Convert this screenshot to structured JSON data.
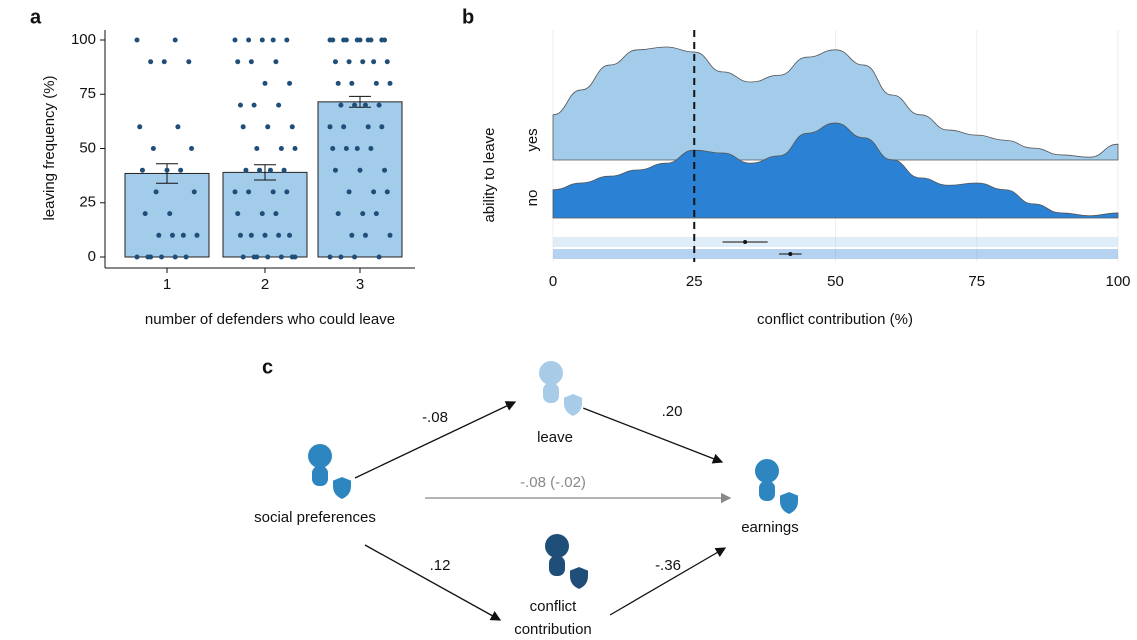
{
  "chart_data": [
    {
      "type": "bar",
      "panel_label": "a",
      "x_label": "number of defenders who could leave",
      "y_label": "leaving frequency (%)",
      "categories": [
        "1",
        "2",
        "3"
      ],
      "values": [
        38.5,
        39,
        71.5
      ],
      "errors": [
        4.5,
        3.5,
        2.5
      ],
      "color": "#a3cbea",
      "point_color": "#1f4e79",
      "points": [
        [
          100,
          100,
          90,
          90,
          90,
          60,
          60,
          50,
          50,
          40,
          40,
          40,
          30,
          30,
          20,
          20,
          10,
          10,
          10,
          10,
          0,
          0,
          0,
          0,
          0,
          0
        ],
        [
          100,
          100,
          100,
          100,
          100,
          90,
          90,
          90,
          80,
          80,
          70,
          70,
          70,
          60,
          60,
          60,
          50,
          50,
          50,
          40,
          40,
          40,
          40,
          30,
          30,
          30,
          30,
          20,
          20,
          20,
          10,
          10,
          10,
          10,
          10,
          0,
          0,
          0,
          0,
          0,
          0,
          0
        ],
        [
          100,
          100,
          100,
          100,
          100,
          100,
          100,
          100,
          100,
          100,
          90,
          90,
          90,
          90,
          90,
          80,
          80,
          80,
          80,
          70,
          70,
          70,
          70,
          60,
          60,
          60,
          60,
          50,
          50,
          50,
          50,
          40,
          40,
          40,
          30,
          30,
          30,
          20,
          20,
          20,
          10,
          10,
          10,
          0,
          0,
          0,
          0
        ]
      ],
      "ylim": [
        0,
        100
      ],
      "yticks": [
        0,
        25,
        50,
        75,
        100
      ]
    },
    {
      "type": "density",
      "panel_label": "b",
      "x_label": "conflict contribution (%)",
      "y_label": "ability to leave",
      "x": [
        0,
        5,
        10,
        15,
        20,
        25,
        30,
        35,
        40,
        45,
        50,
        55,
        60,
        65,
        70,
        75,
        80,
        85,
        90,
        95,
        100
      ],
      "series": [
        {
          "name": "yes",
          "color": "#a3cbea",
          "mean": 34,
          "mean_error": 4,
          "values": [
            0.008,
            0.0124,
            0.0168,
            0.0195,
            0.02,
            0.0191,
            0.0156,
            0.0138,
            0.015,
            0.0182,
            0.0195,
            0.0168,
            0.0115,
            0.008,
            0.0053,
            0.0044,
            0.0035,
            0.0021,
            0.0009,
            0.0005,
            0.0028
          ]
        },
        {
          "name": "no",
          "color": "#2b82d4",
          "mean": 42,
          "mean_error": 2,
          "values": [
            0.005,
            0.0062,
            0.0074,
            0.0085,
            0.0097,
            0.012,
            0.0115,
            0.0097,
            0.011,
            0.015,
            0.0168,
            0.0142,
            0.0103,
            0.0071,
            0.0058,
            0.0062,
            0.005,
            0.0025,
            0.0009,
            0.0004,
            0.0009
          ]
        }
      ],
      "reference_line": 25,
      "xlim": [
        0,
        100
      ],
      "xticks": [
        0,
        25,
        50,
        75,
        100
      ],
      "ylim": [
        0,
        0.02
      ],
      "grid": true
    }
  ],
  "diagram": {
    "panel_label": "c",
    "nodes": [
      {
        "label": "social preferences"
      },
      {
        "label": "leave"
      },
      {
        "label": [
          "conflict",
          "contribution"
        ]
      },
      {
        "label": "earnings"
      }
    ],
    "edges": [
      {
        "label": "-.08"
      },
      {
        "label": ".20"
      },
      {
        "label": ".12"
      },
      {
        "label": "-.36"
      },
      {
        "label": "-.08 (-.02)"
      }
    ]
  }
}
